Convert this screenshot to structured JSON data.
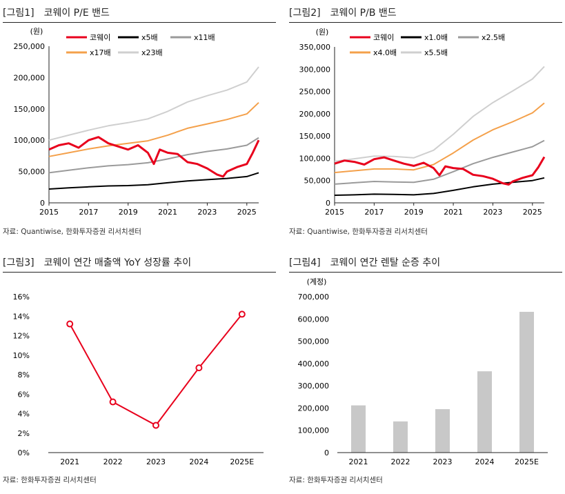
{
  "source_text": "자료: Quantiwise, 한화투자증권 리서치센터",
  "source_text2": "자료: 한화투자증권 리서치센터",
  "chart_data": [
    {
      "type": "line",
      "tag": "[그림1]",
      "title": "코웨이 P/E 밴드",
      "unit": "(원)",
      "ylim": [
        0,
        250000
      ],
      "yticks": [
        "0",
        "50,000",
        "100,000",
        "150,000",
        "200,000",
        "250,000"
      ],
      "xticks": [
        "2015",
        "2017",
        "2019",
        "2021",
        "2023",
        "2025"
      ],
      "xlim": [
        2015.0,
        2025.6
      ],
      "legend": [
        "코웨이",
        "x5배",
        "x11배",
        "x17배",
        "x23배"
      ],
      "colors": {
        "코웨이": "#e8001c",
        "x5배": "#000000",
        "x11배": "#9a9a9a",
        "x17배": "#f4a04a",
        "x23배": "#cfcfcf"
      },
      "series": [
        {
          "name": "코웨이",
          "x": [
            2015.0,
            2015.5,
            2016.0,
            2016.5,
            2017.0,
            2017.5,
            2018.0,
            2018.5,
            2019.0,
            2019.5,
            2020.0,
            2020.3,
            2020.6,
            2021.0,
            2021.5,
            2022.0,
            2022.5,
            2023.0,
            2023.5,
            2023.8,
            2024.0,
            2024.5,
            2025.0,
            2025.3,
            2025.6
          ],
          "y": [
            85000,
            92000,
            95000,
            88000,
            100000,
            105000,
            95000,
            90000,
            85000,
            92000,
            80000,
            62000,
            85000,
            80000,
            78000,
            65000,
            62000,
            55000,
            45000,
            42000,
            50000,
            57000,
            62000,
            80000,
            100000
          ]
        },
        {
          "name": "x5배",
          "x": [
            2015.0,
            2016.0,
            2017.0,
            2018.0,
            2019.0,
            2020.0,
            2021.0,
            2022.0,
            2023.0,
            2024.0,
            2025.0,
            2025.6
          ],
          "y": [
            22000,
            24000,
            25500,
            27000,
            27500,
            29000,
            32000,
            35000,
            37000,
            39000,
            42000,
            48000
          ]
        },
        {
          "name": "x11배",
          "x": [
            2015.0,
            2016.0,
            2017.0,
            2018.0,
            2019.0,
            2020.0,
            2021.0,
            2022.0,
            2023.0,
            2024.0,
            2025.0,
            2025.6
          ],
          "y": [
            48000,
            52000,
            56000,
            59000,
            61000,
            64000,
            70000,
            77000,
            82000,
            86000,
            92000,
            104000
          ]
        },
        {
          "name": "x17배",
          "x": [
            2015.0,
            2016.0,
            2017.0,
            2018.0,
            2019.0,
            2020.0,
            2021.0,
            2022.0,
            2023.0,
            2024.0,
            2025.0,
            2025.6
          ],
          "y": [
            74000,
            80000,
            86000,
            91000,
            95000,
            99000,
            108000,
            119000,
            126000,
            133000,
            142000,
            160000
          ]
        },
        {
          "name": "x23배",
          "x": [
            2015.0,
            2016.0,
            2017.0,
            2018.0,
            2019.0,
            2020.0,
            2021.0,
            2022.0,
            2023.0,
            2024.0,
            2025.0,
            2025.6
          ],
          "y": [
            100000,
            108000,
            116000,
            123000,
            128000,
            134000,
            146000,
            161000,
            171000,
            180000,
            193000,
            217000
          ]
        }
      ]
    },
    {
      "type": "line",
      "tag": "[그림2]",
      "title": "코웨이 P/B 밴드",
      "unit": "(원)",
      "ylim": [
        0,
        350000
      ],
      "yticks": [
        "0",
        "50,000",
        "100,000",
        "150,000",
        "200,000",
        "250,000",
        "300,000",
        "350,000"
      ],
      "xticks": [
        "2015",
        "2017",
        "2019",
        "2021",
        "2023",
        "2025"
      ],
      "xlim": [
        2015.0,
        2025.6
      ],
      "legend": [
        "코웨이",
        "x1.0배",
        "x2.5배",
        "x4.0배",
        "x5.5배"
      ],
      "colors": {
        "코웨이": "#e8001c",
        "x1.0배": "#000000",
        "x2.5배": "#9a9a9a",
        "x4.0배": "#f4a04a",
        "x5.5배": "#cfcfcf"
      },
      "series": [
        {
          "name": "코웨이",
          "x": [
            2015.0,
            2015.5,
            2016.0,
            2016.5,
            2017.0,
            2017.5,
            2018.0,
            2018.5,
            2019.0,
            2019.5,
            2020.0,
            2020.3,
            2020.6,
            2021.0,
            2021.5,
            2022.0,
            2022.5,
            2023.0,
            2023.5,
            2023.8,
            2024.0,
            2024.5,
            2025.0,
            2025.3,
            2025.6
          ],
          "y": [
            88000,
            95000,
            92000,
            86000,
            98000,
            102000,
            95000,
            88000,
            83000,
            90000,
            78000,
            62000,
            82000,
            78000,
            76000,
            63000,
            60000,
            54000,
            44000,
            41000,
            48000,
            56000,
            62000,
            80000,
            103000
          ]
        },
        {
          "name": "x1.0배",
          "x": [
            2015.0,
            2016.0,
            2017.0,
            2018.0,
            2019.0,
            2020.0,
            2021.0,
            2022.0,
            2023.0,
            2024.0,
            2025.0,
            2025.6
          ],
          "y": [
            17000,
            18000,
            19500,
            19000,
            18000,
            21000,
            28000,
            36000,
            42000,
            46000,
            50000,
            56000
          ]
        },
        {
          "name": "x2.5배",
          "x": [
            2015.0,
            2016.0,
            2017.0,
            2018.0,
            2019.0,
            2020.0,
            2021.0,
            2022.0,
            2023.0,
            2024.0,
            2025.0,
            2025.6
          ],
          "y": [
            42000,
            45000,
            48000,
            47000,
            46000,
            53000,
            70000,
            88000,
            102000,
            114000,
            126000,
            140000
          ]
        },
        {
          "name": "x4.0배",
          "x": [
            2015.0,
            2016.0,
            2017.0,
            2018.0,
            2019.0,
            2020.0,
            2021.0,
            2022.0,
            2023.0,
            2024.0,
            2025.0,
            2025.6
          ],
          "y": [
            68000,
            72000,
            76000,
            76000,
            74000,
            86000,
            112000,
            141000,
            164000,
            182000,
            202000,
            224000
          ]
        },
        {
          "name": "x5.5배",
          "x": [
            2015.0,
            2016.0,
            2017.0,
            2018.0,
            2019.0,
            2020.0,
            2021.0,
            2022.0,
            2023.0,
            2024.0,
            2025.0,
            2025.6
          ],
          "y": [
            93000,
            99000,
            105000,
            104000,
            101000,
            118000,
            154000,
            194000,
            225000,
            251000,
            278000,
            306000
          ]
        }
      ]
    },
    {
      "type": "line",
      "tag": "[그림3]",
      "title": "코웨이 연간 매출액 YoY 성장률 추이",
      "ylim": [
        0,
        16
      ],
      "yticks": [
        "0%",
        "2%",
        "4%",
        "6%",
        "8%",
        "10%",
        "12%",
        "14%",
        "16%"
      ],
      "categories": [
        "2021",
        "2022",
        "2023",
        "2024",
        "2025E"
      ],
      "color": "#e8001c",
      "values": [
        13.2,
        5.2,
        2.8,
        8.7,
        14.2
      ]
    },
    {
      "type": "bar",
      "tag": "[그림4]",
      "title": "코웨이 연간 렌탈 순증 추이",
      "unit": "(계정)",
      "ylim": [
        0,
        700000
      ],
      "yticks": [
        "0",
        "100,000",
        "200,000",
        "300,000",
        "400,000",
        "500,000",
        "600,000",
        "700,000"
      ],
      "categories": [
        "2021",
        "2022",
        "2023",
        "2024",
        "2025E"
      ],
      "color": "#c8c8c8",
      "values": [
        212000,
        140000,
        195000,
        365000,
        632000
      ]
    }
  ]
}
